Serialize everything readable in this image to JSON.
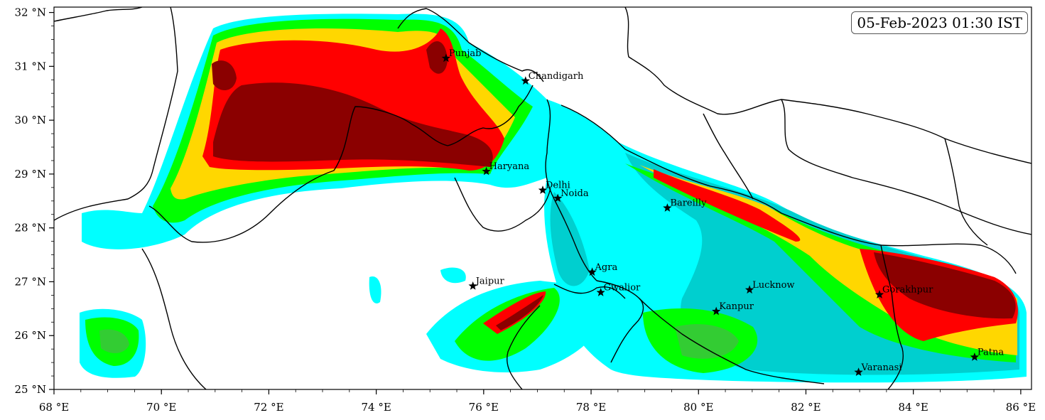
{
  "timestamp": "05-Feb-2023 01:30 IST",
  "map": {
    "lon_range": [
      68,
      86.2
    ],
    "lat_range": [
      25,
      32.1
    ],
    "x_ticks": [
      {
        "lon": 68,
        "label": "68 °E"
      },
      {
        "lon": 70,
        "label": "70 °E"
      },
      {
        "lon": 72,
        "label": "72 °E"
      },
      {
        "lon": 74,
        "label": "74 °E"
      },
      {
        "lon": 76,
        "label": "76 °E"
      },
      {
        "lon": 78,
        "label": "78 °E"
      },
      {
        "lon": 80,
        "label": "80 °E"
      },
      {
        "lon": 82,
        "label": "82 °E"
      },
      {
        "lon": 84,
        "label": "84 °E"
      },
      {
        "lon": 86,
        "label": "86 °E"
      }
    ],
    "y_ticks": [
      {
        "lat": 25,
        "label": "25 °N"
      },
      {
        "lat": 26,
        "label": "26 °N"
      },
      {
        "lat": 27,
        "label": "27 °N"
      },
      {
        "lat": 28,
        "label": "28 °N"
      },
      {
        "lat": 29,
        "label": "29 °N"
      },
      {
        "lat": 30,
        "label": "30 °N"
      },
      {
        "lat": 31,
        "label": "31 °N"
      },
      {
        "lat": 32,
        "label": "32 °N"
      }
    ],
    "shading_colors": {
      "level1": "#00ffff",
      "level2": "#00cfcf",
      "level3": "#00ff00",
      "level4": "#33cc33",
      "level5": "#ffd700",
      "level6": "#ff0000",
      "level7": "#8b0000"
    },
    "cities": [
      {
        "name": "Punjab",
        "lon": 75.3,
        "lat": 31.15
      },
      {
        "name": "Chandigarh",
        "lon": 76.78,
        "lat": 30.73
      },
      {
        "name": "Haryana",
        "lon": 76.05,
        "lat": 29.05
      },
      {
        "name": "Delhi",
        "lon": 77.1,
        "lat": 28.7
      },
      {
        "name": "Noida",
        "lon": 77.38,
        "lat": 28.55
      },
      {
        "name": "Bareilly",
        "lon": 79.42,
        "lat": 28.37
      },
      {
        "name": "Agra",
        "lon": 78.02,
        "lat": 27.18
      },
      {
        "name": "Jaipur",
        "lon": 75.8,
        "lat": 26.92
      },
      {
        "name": "Gwalior",
        "lon": 78.18,
        "lat": 26.8
      },
      {
        "name": "Lucknow",
        "lon": 80.95,
        "lat": 26.85
      },
      {
        "name": "Kanpur",
        "lon": 80.33,
        "lat": 26.45
      },
      {
        "name": "Gorakhpur",
        "lon": 83.37,
        "lat": 26.76
      },
      {
        "name": "Varanasi",
        "lon": 82.98,
        "lat": 25.32
      },
      {
        "name": "Patna",
        "lon": 85.14,
        "lat": 25.6
      }
    ]
  }
}
